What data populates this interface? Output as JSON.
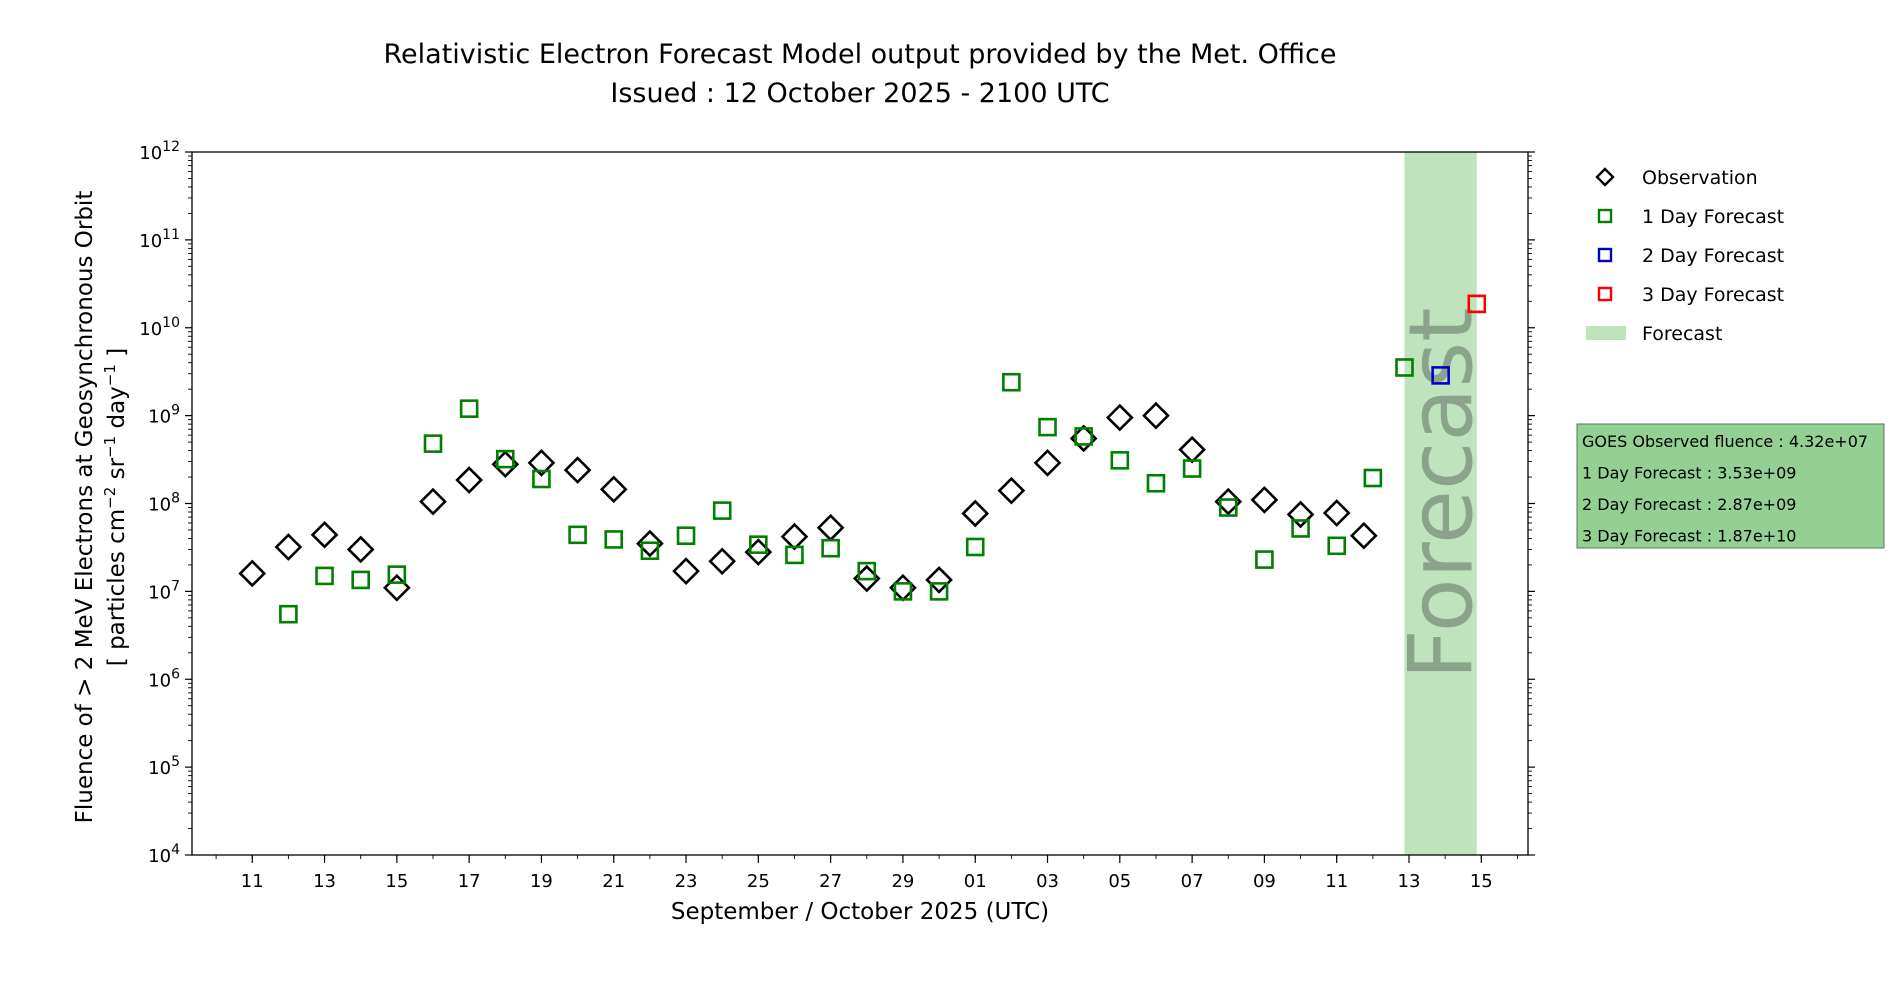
{
  "chart_data": {
    "type": "scatter",
    "title": "Relativistic Electron Forecast Model output provided by the Met. Office",
    "subtitle": "Issued : 12 October 2025 - 2100 UTC",
    "xlabel": "September / October 2025 (UTC)",
    "ylabel_line1": "Fluence of > 2 MeV Electrons at Geosynchronous Orbit",
    "ylabel_line2": "[ particles cm",
    "ylabel_sup1": "−2",
    "ylabel_mid": " sr",
    "ylabel_sup2": "−1",
    "ylabel_mid2": " day",
    "ylabel_sup3": "−1",
    "ylabel_end": " ]",
    "y_scale": "log",
    "ylim_exponents": [
      4,
      12
    ],
    "y_tick_base": "10",
    "y_tick_exponents": [
      "4",
      "5",
      "6",
      "7",
      "8",
      "9",
      "10",
      "11",
      "12"
    ],
    "xlim": [
      "2025-09-09 08:00",
      "2025-10-16 07:00"
    ],
    "x_tick_dates": [
      "2025-09-11",
      "2025-09-13",
      "2025-09-15",
      "2025-09-17",
      "2025-09-19",
      "2025-09-21",
      "2025-09-23",
      "2025-09-25",
      "2025-09-27",
      "2025-09-29",
      "2025-10-01",
      "2025-10-03",
      "2025-10-05",
      "2025-10-07",
      "2025-10-09",
      "2025-10-11",
      "2025-10-13",
      "2025-10-15"
    ],
    "x_tick_labels": [
      "11",
      "13",
      "15",
      "17",
      "19",
      "21",
      "23",
      "25",
      "27",
      "29",
      "01",
      "03",
      "05",
      "07",
      "09",
      "11",
      "13",
      "15"
    ],
    "forecast_band": [
      "2025-10-12 21:00",
      "2025-10-14 21:00"
    ],
    "forecast_band_label": "Forecast",
    "series": [
      {
        "name": "Observation",
        "marker": "diamond",
        "color": "#000000",
        "points": [
          [
            "2025-09-11",
            16000000.0
          ],
          [
            "2025-09-12",
            32000000.0
          ],
          [
            "2025-09-13",
            44000000.0
          ],
          [
            "2025-09-14",
            30000000.0
          ],
          [
            "2025-09-15",
            11000000.0
          ],
          [
            "2025-09-16",
            105000000.0
          ],
          [
            "2025-09-17",
            185000000.0
          ],
          [
            "2025-09-18",
            280000000.0
          ],
          [
            "2025-09-19",
            290000000.0
          ],
          [
            "2025-09-20",
            240000000.0
          ],
          [
            "2025-09-21",
            145000000.0
          ],
          [
            "2025-09-22",
            35000000.0
          ],
          [
            "2025-09-23",
            17000000.0
          ],
          [
            "2025-09-24",
            22000000.0
          ],
          [
            "2025-09-25",
            28000000.0
          ],
          [
            "2025-09-26",
            42000000.0
          ],
          [
            "2025-09-27",
            53000000.0
          ],
          [
            "2025-09-28",
            14000000.0
          ],
          [
            "2025-09-29",
            11000000.0
          ],
          [
            "2025-09-30",
            13500000.0
          ],
          [
            "2025-10-01",
            77000000.0
          ],
          [
            "2025-10-02",
            140000000.0
          ],
          [
            "2025-10-03",
            290000000.0
          ],
          [
            "2025-10-04",
            550000000.0
          ],
          [
            "2025-10-05",
            950000000.0
          ],
          [
            "2025-10-06",
            1000000000.0
          ],
          [
            "2025-10-07",
            410000000.0
          ],
          [
            "2025-10-08",
            105000000.0
          ],
          [
            "2025-10-09",
            110000000.0
          ],
          [
            "2025-10-10",
            75000000.0
          ],
          [
            "2025-10-11",
            78000000.0
          ],
          [
            "2025-10-11 18:00",
            43000000.0
          ]
        ]
      },
      {
        "name": "1 Day Forecast",
        "marker": "square",
        "color": "#008000",
        "points": [
          [
            "2025-09-12",
            5500000.0
          ],
          [
            "2025-09-13",
            15000000.0
          ],
          [
            "2025-09-14",
            13500000.0
          ],
          [
            "2025-09-15",
            15500000.0
          ],
          [
            "2025-09-16",
            480000000.0
          ],
          [
            "2025-09-17",
            1200000000.0
          ],
          [
            "2025-09-18",
            320000000.0
          ],
          [
            "2025-09-19",
            190000000.0
          ],
          [
            "2025-09-20",
            44000000.0
          ],
          [
            "2025-09-21",
            39000000.0
          ],
          [
            "2025-09-22",
            29000000.0
          ],
          [
            "2025-09-23",
            43000000.0
          ],
          [
            "2025-09-24",
            83000000.0
          ],
          [
            "2025-09-25",
            34000000.0
          ],
          [
            "2025-09-26",
            26000000.0
          ],
          [
            "2025-09-27",
            31000000.0
          ],
          [
            "2025-09-28",
            17000000.0
          ],
          [
            "2025-09-29",
            10000000.0
          ],
          [
            "2025-09-30",
            10000000.0
          ],
          [
            "2025-10-01",
            32000000.0
          ],
          [
            "2025-10-02",
            2400000000.0
          ],
          [
            "2025-10-03",
            740000000.0
          ],
          [
            "2025-10-04",
            580000000.0
          ],
          [
            "2025-10-05",
            310000000.0
          ],
          [
            "2025-10-06",
            170000000.0
          ],
          [
            "2025-10-07",
            250000000.0
          ],
          [
            "2025-10-08",
            90000000.0
          ],
          [
            "2025-10-09",
            23000000.0
          ],
          [
            "2025-10-10",
            52000000.0
          ],
          [
            "2025-10-11",
            33000000.0
          ],
          [
            "2025-10-12",
            195000000.0
          ],
          [
            "2025-10-12 21:00",
            3530000000.0
          ]
        ]
      },
      {
        "name": "2 Day Forecast",
        "marker": "square",
        "color": "#0000cc",
        "points": [
          [
            "2025-10-13 21:00",
            2870000000.0
          ]
        ]
      },
      {
        "name": "3 Day Forecast",
        "marker": "square",
        "color": "#ff0000",
        "points": [
          [
            "2025-10-14 21:00",
            18700000000.0
          ]
        ]
      }
    ],
    "legend": {
      "placement": "right, outside plot",
      "entries": [
        "Observation",
        "1 Day Forecast",
        "2 Day Forecast",
        "3 Day Forecast",
        "Forecast"
      ],
      "forecast_swatch_color": "#bfe3bd"
    },
    "info_box": {
      "lines": [
        "GOES Observed fluence : 4.32e+07",
        "1 Day Forecast : 3.53e+09",
        "2 Day Forecast : 2.87e+09",
        "3 Day Forecast : 1.87e+10"
      ],
      "background_color": "#94cf94"
    },
    "grid": false,
    "colors": {
      "forecast_band": "#bfe3bd",
      "forecast_text": "#8aa38a"
    }
  }
}
